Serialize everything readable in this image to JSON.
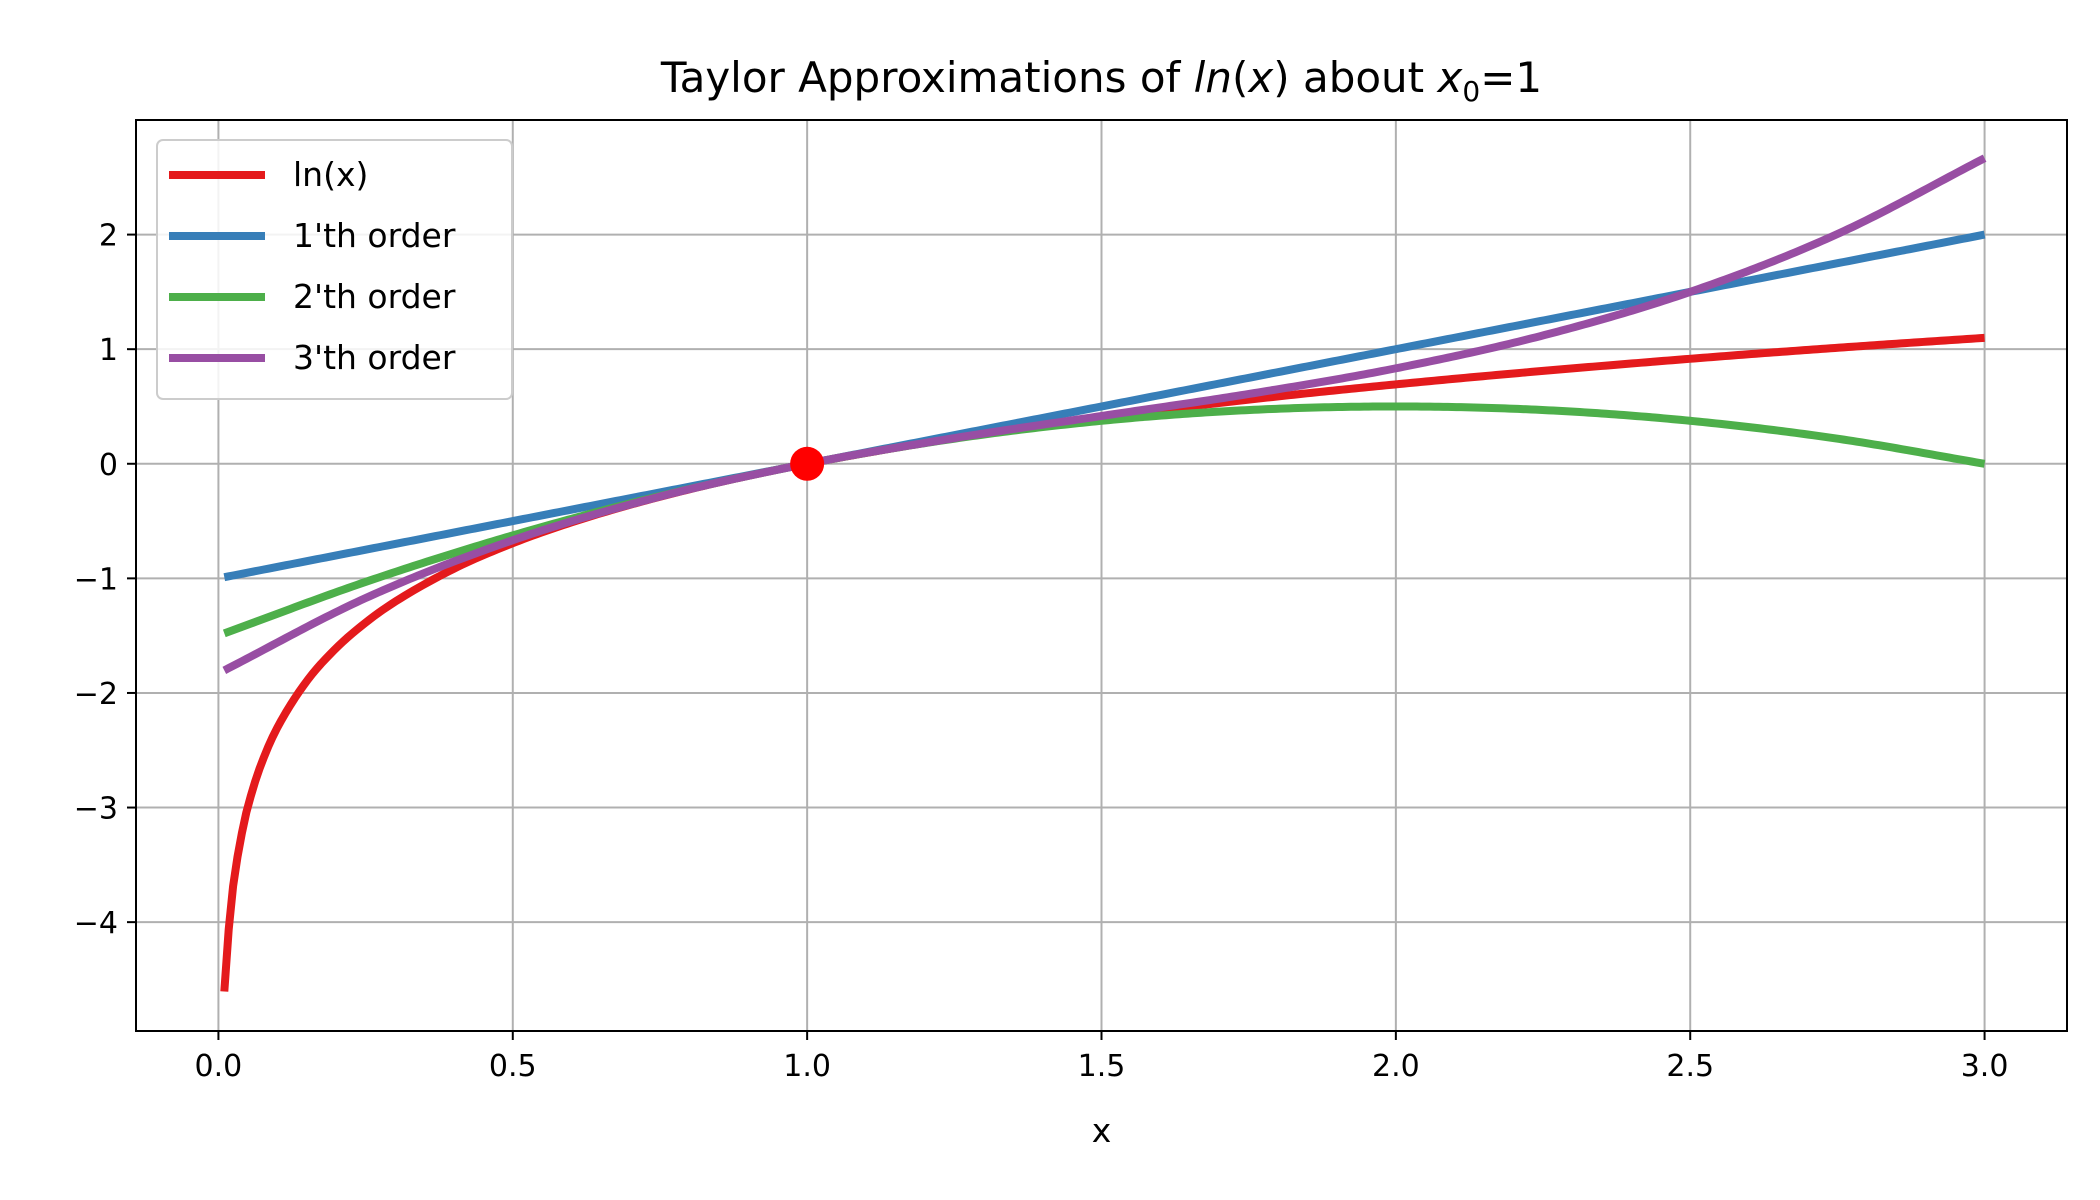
{
  "chart_data": {
    "type": "line",
    "title": {
      "main": "Taylor Approximations of ",
      "func": "ln",
      "func_arg": "x",
      "mid": " about ",
      "var": "x",
      "var_sub": "0",
      "tail": "=1"
    },
    "xlabel": "x",
    "ylabel": "",
    "xlim": [
      -0.14,
      3.14
    ],
    "ylim": [
      -4.95,
      3.0
    ],
    "xticks": [
      0.0,
      0.5,
      1.0,
      1.5,
      2.0,
      2.5,
      3.0
    ],
    "xtick_labels": [
      "0.0",
      "0.5",
      "1.0",
      "1.5",
      "2.0",
      "2.5",
      "3.0"
    ],
    "yticks": [
      -4,
      -3,
      -2,
      -1,
      0,
      1,
      2
    ],
    "ytick_labels": [
      "−4",
      "−3",
      "−2",
      "−1",
      "0",
      "1",
      "2"
    ],
    "grid": true,
    "legend_position": "top-left",
    "x_range": [
      0.01,
      3.0
    ],
    "series": [
      {
        "name": "ln(x)",
        "color": "#e41a1c",
        "x": [
          0.01,
          0.02,
          0.04,
          0.06,
          0.08,
          0.1,
          0.15,
          0.2,
          0.25,
          0.3,
          0.4,
          0.5,
          0.6,
          0.7,
          0.8,
          0.9,
          1.0,
          1.2,
          1.4,
          1.6,
          1.8,
          2.0,
          2.2,
          2.4,
          2.6,
          2.8,
          3.0
        ],
        "y": [
          -4.605,
          -3.912,
          -3.219,
          -2.813,
          -2.526,
          -2.303,
          -1.897,
          -1.609,
          -1.386,
          -1.204,
          -0.916,
          -0.693,
          -0.511,
          -0.357,
          -0.223,
          -0.105,
          0.0,
          0.182,
          0.336,
          0.47,
          0.588,
          0.693,
          0.788,
          0.875,
          0.956,
          1.03,
          1.099
        ]
      },
      {
        "name": "1'th order",
        "color": "#377eb8",
        "x": [
          0.01,
          0.5,
          1.0,
          1.5,
          2.0,
          2.5,
          3.0
        ],
        "y": [
          -0.99,
          -0.5,
          0.0,
          0.5,
          1.0,
          1.5,
          2.0
        ]
      },
      {
        "name": "2'th order",
        "color": "#4daf4a",
        "x": [
          0.01,
          0.25,
          0.5,
          0.75,
          1.0,
          1.25,
          1.5,
          1.75,
          2.0,
          2.25,
          2.5,
          2.75,
          3.0
        ],
        "y": [
          -1.48,
          -1.031,
          -0.625,
          -0.281,
          0.0,
          0.219,
          0.375,
          0.469,
          0.5,
          0.469,
          0.375,
          0.219,
          0.0
        ]
      },
      {
        "name": "3'th order",
        "color": "#984ea3",
        "x": [
          0.01,
          0.25,
          0.5,
          0.75,
          1.0,
          1.25,
          1.5,
          1.75,
          2.0,
          2.25,
          2.5,
          2.75,
          3.0
        ],
        "y": [
          -1.803,
          -1.172,
          -0.667,
          -0.286,
          0.0,
          0.224,
          0.417,
          0.609,
          0.833,
          1.12,
          1.5,
          2.005,
          2.667
        ]
      }
    ],
    "markers": [
      {
        "x": 1.0,
        "y": 0.0,
        "color": "#ff0000"
      }
    ]
  }
}
